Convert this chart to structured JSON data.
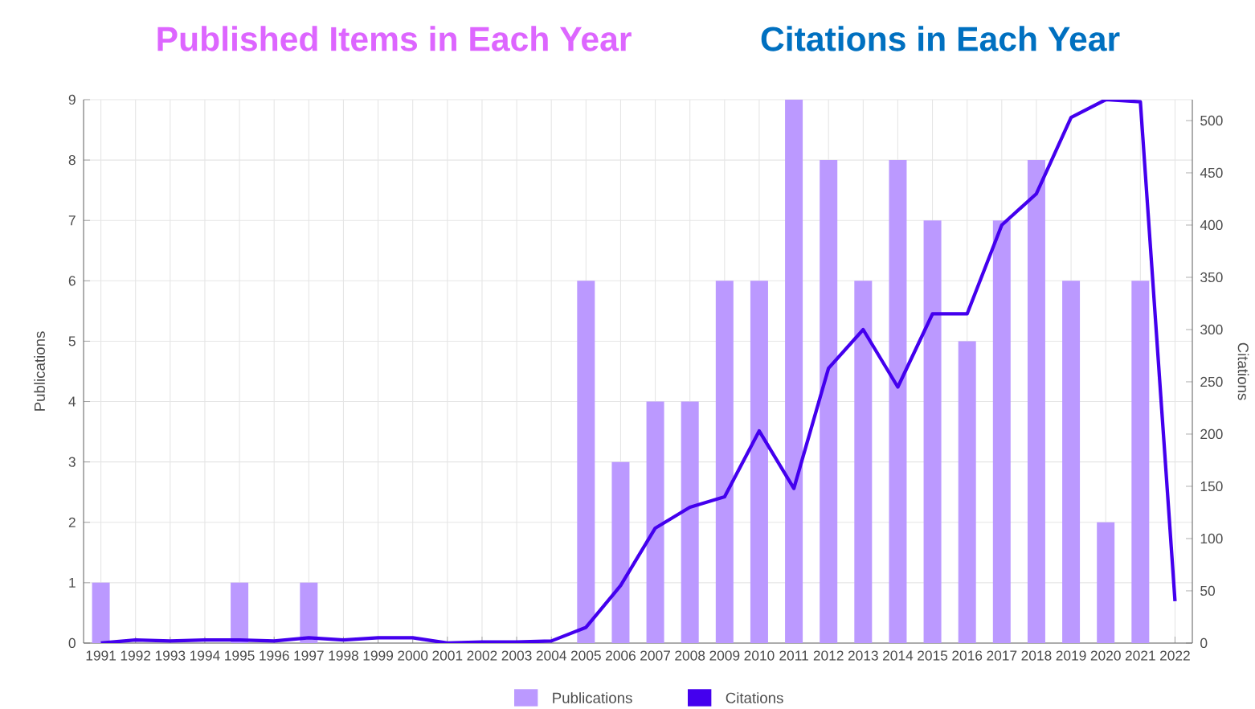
{
  "chart_data": {
    "type": "bar",
    "title": "Published Items in Each Year",
    "subtitle": "Citations in Each Year",
    "ylabel": "Publications",
    "y2label": "Citations",
    "categories": [
      "1991",
      "1992",
      "1993",
      "1994",
      "1995",
      "1996",
      "1997",
      "1998",
      "1999",
      "2000",
      "2001",
      "2002",
      "2003",
      "2004",
      "2005",
      "2006",
      "2007",
      "2008",
      "2009",
      "2010",
      "2011",
      "2012",
      "2013",
      "2014",
      "2015",
      "2016",
      "2017",
      "2018",
      "2019",
      "2020",
      "2021",
      "2022"
    ],
    "series": [
      {
        "name": "Publications",
        "color": "#bb99ff",
        "values": [
          1,
          0,
          0,
          0,
          1,
          0,
          1,
          0,
          0,
          0,
          0,
          0,
          0,
          0,
          6,
          3,
          4,
          4,
          6,
          6,
          9,
          8,
          6,
          8,
          7,
          5,
          7,
          8,
          6,
          2,
          6,
          0
        ]
      },
      {
        "name": "Citations",
        "type": "line",
        "axis": "y2",
        "color": "#4400ee",
        "values": [
          0,
          3,
          2,
          3,
          3,
          2,
          5,
          3,
          5,
          5,
          0,
          1,
          1,
          2,
          15,
          55,
          110,
          130,
          140,
          203,
          148,
          263,
          300,
          245,
          315,
          315,
          400,
          430,
          503,
          520,
          518,
          40
        ]
      }
    ],
    "ylim": [
      0,
      9
    ],
    "yticks": [
      0,
      1,
      2,
      3,
      4,
      5,
      6,
      7,
      8,
      9
    ],
    "y2lim": [
      0,
      520
    ],
    "y2ticks": [
      0,
      50,
      100,
      150,
      200,
      250,
      300,
      350,
      400,
      450,
      500
    ],
    "grid": true,
    "legend": "bottom",
    "marker": "none",
    "line_style": "solid"
  }
}
